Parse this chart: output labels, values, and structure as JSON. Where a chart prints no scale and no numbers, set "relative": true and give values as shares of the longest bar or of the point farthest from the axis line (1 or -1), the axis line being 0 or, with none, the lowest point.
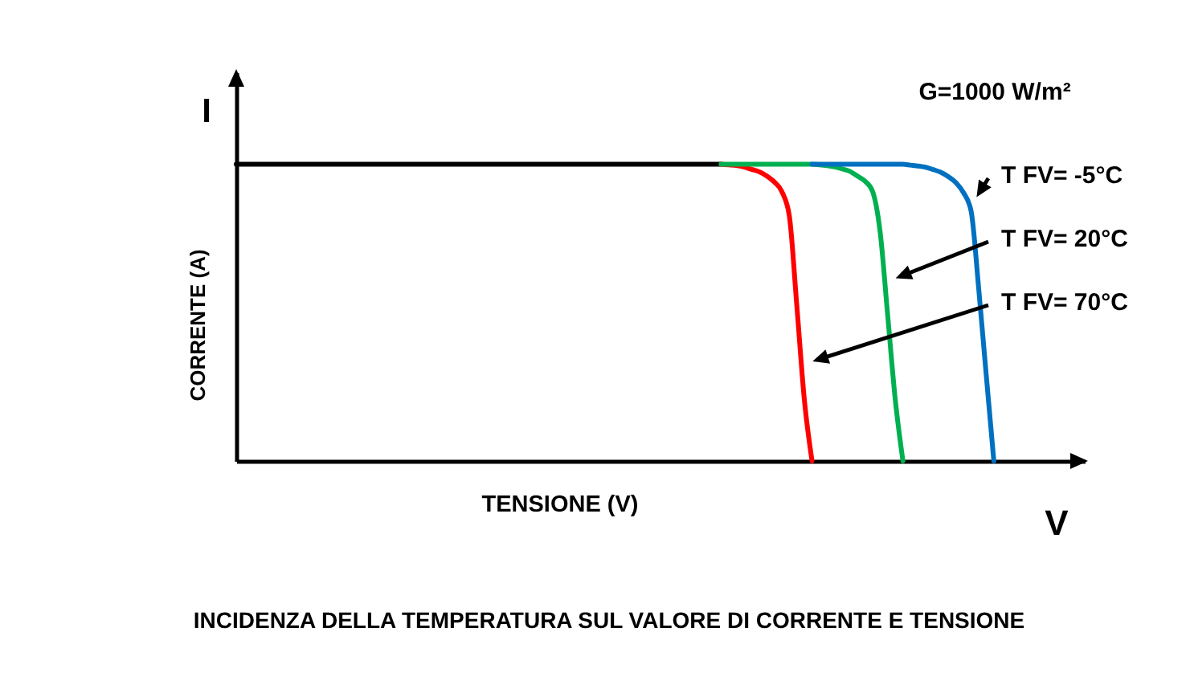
{
  "chart_data": {
    "type": "line",
    "title": "INCIDENZA DELLA TEMPERATURA SUL VALORE DI CORRENTE E TENSIONE",
    "xlabel": "TENSIONE (V)",
    "ylabel": "CORRENTE (A)",
    "relative": true,
    "tick_labels": false,
    "grid": false,
    "marker": "none",
    "line_style": "solid",
    "annotations": [
      "I",
      "G=1000 W/m²",
      "T FV= -5°C",
      "T FV= 20°C",
      "T FV= 70°C",
      "V"
    ],
    "categories": [
      null,
      null,
      null,
      null,
      null,
      null,
      null,
      null,
      null,
      null,
      null,
      null,
      null,
      null,
      null,
      null,
      null,
      null,
      null,
      null,
      null,
      null,
      null,
      null,
      null,
      null,
      null,
      null,
      null,
      null,
      null,
      null,
      null,
      null,
      null,
      null,
      null,
      null,
      null,
      null,
      null,
      null,
      null,
      null,
      null,
      null,
      null,
      null,
      null,
      null,
      null,
      null,
      null,
      null,
      null,
      null,
      null,
      null,
      null,
      null,
      null,
      null,
      null,
      null,
      null,
      null,
      null,
      null,
      null,
      null,
      null,
      null,
      null,
      null,
      null,
      null,
      null,
      null,
      null,
      null,
      null,
      null,
      null,
      null,
      null,
      null,
      null,
      null,
      null,
      null,
      null,
      null,
      null,
      null,
      null,
      null,
      null,
      null,
      null,
      null,
      null,
      null,
      null,
      null,
      null,
      null,
      null,
      null,
      null,
      null,
      null,
      null,
      null
    ],
    "series": [
      {
        "color": "#000000",
        "values": [
          1,
          1,
          1,
          1,
          1,
          1,
          1,
          1,
          1,
          1,
          1,
          1,
          1,
          1,
          1,
          1,
          1,
          1,
          1,
          1,
          1,
          1,
          1,
          1,
          1,
          1,
          1,
          1,
          1,
          1,
          1,
          1,
          1,
          1,
          1,
          1,
          1,
          1,
          1,
          1,
          1,
          1,
          1,
          1,
          1,
          1,
          1,
          1,
          1,
          1,
          1,
          1,
          1,
          1,
          1,
          1,
          1,
          1,
          1,
          1,
          1,
          1,
          1,
          1,
          1,
          null,
          null,
          null,
          null,
          null,
          null,
          null,
          null,
          null,
          null,
          null,
          null,
          null,
          null,
          null,
          null,
          null,
          null,
          null,
          null,
          null,
          null,
          null,
          null,
          null,
          null,
          null,
          null,
          null,
          null,
          null,
          null,
          null,
          null,
          null,
          null,
          null,
          null,
          null,
          null,
          null,
          null,
          null,
          null,
          null,
          null,
          null,
          null
        ]
      },
      {
        "color": "#ff0000",
        "values": [
          null,
          null,
          null,
          null,
          null,
          null,
          null,
          null,
          null,
          null,
          null,
          null,
          null,
          null,
          null,
          null,
          null,
          null,
          null,
          null,
          null,
          null,
          null,
          null,
          null,
          null,
          null,
          null,
          null,
          null,
          null,
          null,
          null,
          null,
          null,
          null,
          null,
          null,
          null,
          null,
          null,
          null,
          null,
          null,
          null,
          null,
          null,
          null,
          null,
          null,
          null,
          null,
          null,
          null,
          null,
          null,
          null,
          null,
          null,
          null,
          null,
          null,
          null,
          null,
          1,
          0.998,
          0.996,
          0.991,
          0.983,
          0.975,
          0.961,
          0.941,
          0.909,
          0.827,
          0.521,
          0.203,
          0,
          null,
          null,
          null,
          null,
          null,
          null,
          null,
          null,
          null,
          null,
          null,
          null,
          null,
          null,
          null,
          null,
          null,
          null,
          null,
          null,
          null,
          null,
          null,
          null,
          null,
          null,
          null,
          null,
          null,
          null,
          null,
          null,
          null,
          null,
          null,
          null
        ]
      },
      {
        "color": "#00b050",
        "values": [
          null,
          null,
          null,
          null,
          null,
          null,
          null,
          null,
          null,
          null,
          null,
          null,
          null,
          null,
          null,
          null,
          null,
          null,
          null,
          null,
          null,
          null,
          null,
          null,
          null,
          null,
          null,
          null,
          null,
          null,
          null,
          null,
          null,
          null,
          null,
          null,
          null,
          null,
          null,
          null,
          null,
          null,
          null,
          null,
          null,
          null,
          null,
          null,
          null,
          null,
          null,
          null,
          null,
          null,
          null,
          null,
          null,
          null,
          null,
          null,
          null,
          null,
          null,
          null,
          1,
          1,
          1,
          1,
          1,
          1,
          1,
          1,
          1,
          1,
          1,
          1,
          1,
          0.998,
          0.995,
          0.991,
          0.984,
          0.976,
          0.96,
          0.943,
          0.908,
          0.77,
          0.487,
          0.204,
          0,
          null,
          null,
          null,
          null,
          null,
          null,
          null,
          null,
          null,
          null,
          null,
          null,
          null,
          null,
          null,
          null,
          null,
          null,
          null,
          null,
          null,
          null,
          null,
          null
        ]
      },
      {
        "color": "#0070c0",
        "values": [
          null,
          null,
          null,
          null,
          null,
          null,
          null,
          null,
          null,
          null,
          null,
          null,
          null,
          null,
          null,
          null,
          null,
          null,
          null,
          null,
          null,
          null,
          null,
          null,
          null,
          null,
          null,
          null,
          null,
          null,
          null,
          null,
          null,
          null,
          null,
          null,
          null,
          null,
          null,
          null,
          null,
          null,
          null,
          null,
          null,
          null,
          null,
          null,
          null,
          null,
          null,
          null,
          null,
          null,
          null,
          null,
          null,
          null,
          null,
          null,
          null,
          null,
          null,
          null,
          null,
          null,
          null,
          null,
          null,
          null,
          null,
          null,
          null,
          null,
          null,
          null,
          1,
          1,
          1,
          1,
          1,
          1,
          1,
          1,
          1,
          1,
          1,
          1,
          1,
          0.997,
          0.994,
          0.99,
          0.982,
          0.973,
          0.958,
          0.938,
          0.904,
          0.842,
          0.581,
          0.288,
          0,
          null,
          null,
          null,
          null,
          null,
          null,
          null,
          null,
          null,
          null,
          null,
          null
        ]
      }
    ]
  }
}
